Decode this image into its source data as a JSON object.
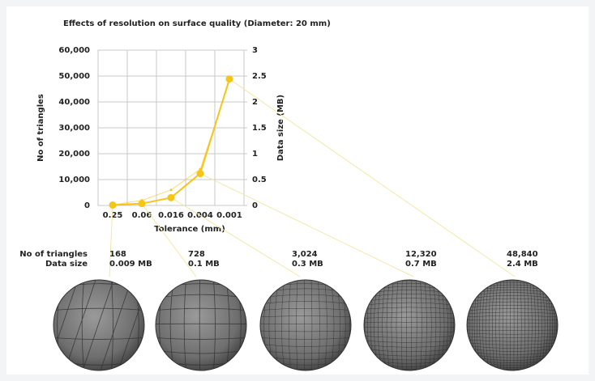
{
  "chart_data": {
    "type": "line",
    "title": "Effects of resolution on surface quality (Diameter: 20 mm)",
    "x_label": "Tolerance (mm)",
    "y_label": "No of triangles",
    "y2_label": "Data size (MB)",
    "categories": [
      "0.25",
      "0.06",
      "0.016",
      "0.004",
      "0.001"
    ],
    "series": [
      {
        "name": "No of triangles",
        "color": "#f5c518",
        "values": [
          168,
          728,
          3024,
          12320,
          48840
        ],
        "value_labels": [
          "168",
          "728",
          "3,024",
          "12,320",
          "48,840"
        ]
      },
      {
        "name": "Data size",
        "color": "#f5c518",
        "axis": "y2",
        "values": [
          0.009,
          0.1,
          0.3,
          0.7,
          2.4
        ],
        "value_labels": [
          "0.009 MB",
          "0.1 MB",
          "0.3 MB",
          "0.7 MB",
          "2.4 MB"
        ]
      }
    ],
    "ylim": [
      0,
      60000
    ],
    "yticks": [
      0,
      {
        "value": 10000,
        "label": "10,000"
      },
      {
        "value": 20000,
        "label": "20,000"
      },
      {
        "value": 30000,
        "label": "30,000"
      },
      {
        "value": 40000,
        "label": "40,000"
      },
      {
        "value": 50000,
        "label": "50,000"
      },
      {
        "value": 60000,
        "label": "60,000"
      }
    ],
    "y2lim": [
      0,
      3
    ],
    "y2ticks": [
      0,
      0.5,
      1,
      1.5,
      2,
      2.5,
      3
    ],
    "grid": true
  }
}
